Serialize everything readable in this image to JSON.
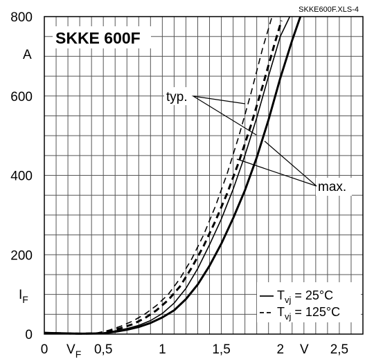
{
  "chart_data": {
    "type": "line",
    "file_tag": "SKKE600F.XLS-4",
    "title": "SKKE 600F",
    "xlabel": "V_F",
    "xlabel_main": "V",
    "xlabel_sub": "F",
    "xunit": "V",
    "ylabel": "I_F",
    "ylabel_main": "I",
    "ylabel_sub": "F",
    "yunit": "A",
    "xlim": [
      0,
      2.7
    ],
    "ylim": [
      0,
      800
    ],
    "grid": true,
    "x_tick_labels": [
      {
        "value": 0,
        "text": "0"
      },
      {
        "value": 0.5,
        "text": "0,5"
      },
      {
        "value": 1,
        "text": "1"
      },
      {
        "value": 1.5,
        "text": "1,5"
      },
      {
        "value": 2,
        "text": "2"
      },
      {
        "value": 2.5,
        "text": "2,5"
      }
    ],
    "y_tick_labels": [
      {
        "value": 0,
        "text": "0"
      },
      {
        "value": 200,
        "text": "200"
      },
      {
        "value": 400,
        "text": "400"
      },
      {
        "value": 600,
        "text": "600"
      },
      {
        "value": 800,
        "text": "800"
      }
    ],
    "series": [
      {
        "style": "solid",
        "width": "thin",
        "points": [
          [
            0,
            3
          ],
          [
            0.3,
            1
          ],
          [
            0.5,
            3
          ],
          [
            0.6,
            8
          ],
          [
            0.7,
            14
          ],
          [
            0.8,
            22
          ],
          [
            0.9,
            34
          ],
          [
            1.0,
            52
          ],
          [
            1.1,
            78
          ],
          [
            1.2,
            115
          ],
          [
            1.3,
            165
          ],
          [
            1.4,
            225
          ],
          [
            1.5,
            290
          ],
          [
            1.6,
            365
          ],
          [
            1.7,
            450
          ],
          [
            1.8,
            545
          ],
          [
            1.9,
            650
          ],
          [
            2.0,
            750
          ],
          [
            2.08,
            800
          ]
        ]
      },
      {
        "style": "solid",
        "width": "thick",
        "points": [
          [
            0,
            3
          ],
          [
            0.3,
            1
          ],
          [
            0.5,
            2
          ],
          [
            0.6,
            6
          ],
          [
            0.7,
            11
          ],
          [
            0.8,
            18
          ],
          [
            0.9,
            28
          ],
          [
            1.0,
            42
          ],
          [
            1.1,
            60
          ],
          [
            1.2,
            88
          ],
          [
            1.3,
            125
          ],
          [
            1.4,
            172
          ],
          [
            1.5,
            228
          ],
          [
            1.6,
            292
          ],
          [
            1.7,
            362
          ],
          [
            1.8,
            445
          ],
          [
            1.9,
            540
          ],
          [
            2.0,
            645
          ],
          [
            2.1,
            740
          ],
          [
            2.17,
            800
          ]
        ]
      },
      {
        "style": "dashed",
        "width": "thin",
        "points": [
          [
            0,
            3
          ],
          [
            0.3,
            1
          ],
          [
            0.45,
            3
          ],
          [
            0.55,
            10
          ],
          [
            0.65,
            20
          ],
          [
            0.75,
            33
          ],
          [
            0.85,
            50
          ],
          [
            0.95,
            72
          ],
          [
            1.05,
            100
          ],
          [
            1.15,
            140
          ],
          [
            1.25,
            190
          ],
          [
            1.35,
            250
          ],
          [
            1.45,
            322
          ],
          [
            1.55,
            405
          ],
          [
            1.65,
            500
          ],
          [
            1.75,
            605
          ],
          [
            1.85,
            720
          ],
          [
            1.93,
            800
          ]
        ]
      },
      {
        "style": "dashed",
        "width": "thick",
        "points": [
          [
            0,
            3
          ],
          [
            0.3,
            1
          ],
          [
            0.45,
            2
          ],
          [
            0.55,
            7
          ],
          [
            0.65,
            15
          ],
          [
            0.75,
            25
          ],
          [
            0.85,
            40
          ],
          [
            0.95,
            60
          ],
          [
            1.05,
            86
          ],
          [
            1.15,
            120
          ],
          [
            1.25,
            168
          ],
          [
            1.35,
            222
          ],
          [
            1.45,
            285
          ],
          [
            1.55,
            355
          ],
          [
            1.65,
            435
          ],
          [
            1.75,
            525
          ],
          [
            1.85,
            625
          ],
          [
            1.95,
            730
          ],
          [
            2.01,
            790
          ]
        ]
      }
    ],
    "annotations": {
      "typ_text": "typ.",
      "max_text": "max."
    },
    "legend": {
      "position": "bottom-right",
      "entries": [
        {
          "style": "solid",
          "prefix": "T",
          "sub": "vj",
          "suffix": " = 25°C"
        },
        {
          "style": "dashed",
          "prefix": "T",
          "sub": "vj",
          "suffix": " = 125°C"
        }
      ]
    }
  }
}
